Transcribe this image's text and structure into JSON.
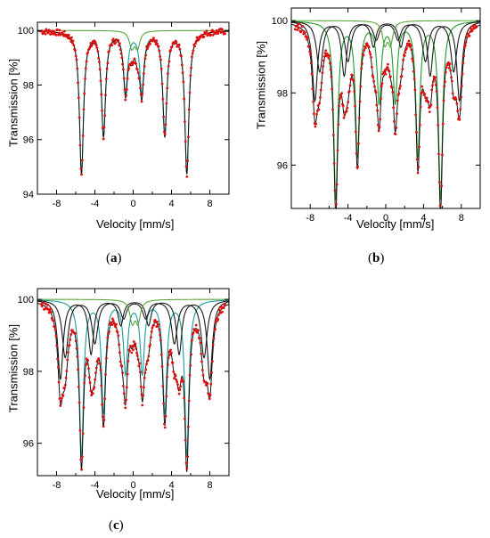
{
  "colors": {
    "data": "#dd1111",
    "envelope": "#111111",
    "subspectrum_black": "#1a1a1a",
    "sextet_teal": "#1a9a9a",
    "sextet_green": "#1e9a2a",
    "doublet_green": "#5aa63a"
  },
  "labels": {
    "a": "a",
    "b": "b",
    "c": "c"
  },
  "chart_data": [
    {
      "id": "a",
      "type": "line",
      "xlabel": "Velocity [mm/s]",
      "ylabel": "Transmission [%]",
      "xlim": [
        -10,
        10
      ],
      "ylim": [
        94,
        100.3
      ],
      "xticks": [
        -8,
        -4,
        0,
        4,
        8
      ],
      "yticks": [
        94,
        96,
        98,
        100
      ],
      "series": [
        {
          "color": "sextet_teal",
          "lines": [
            {
              "x": -5.4,
              "depth": 5.2,
              "width": 0.26
            },
            {
              "x": -3.1,
              "depth": 3.8,
              "width": 0.26
            },
            {
              "x": -0.8,
              "depth": 2.2,
              "width": 0.26
            },
            {
              "x": 0.9,
              "depth": 2.2,
              "width": 0.26
            },
            {
              "x": 3.3,
              "depth": 3.8,
              "width": 0.26
            },
            {
              "x": 5.6,
              "depth": 5.2,
              "width": 0.26
            }
          ]
        },
        {
          "color": "doublet_green",
          "lines": [
            {
              "x": -0.15,
              "depth": 0.6,
              "width": 0.3
            },
            {
              "x": 0.45,
              "depth": 0.6,
              "width": 0.3
            }
          ]
        }
      ]
    },
    {
      "id": "b",
      "type": "line",
      "xlabel": "Velocity [mm/s]",
      "ylabel": "Transmission [%]",
      "xlim": [
        -10,
        10
      ],
      "ylim": [
        94.8,
        100.35
      ],
      "xticks": [
        -8,
        -4,
        0,
        4,
        8
      ],
      "yticks": [
        96,
        98,
        100
      ],
      "series": [
        {
          "color": "sextet_green",
          "lines": [
            {
              "x": -5.3,
              "depth": 4.9,
              "width": 0.26
            },
            {
              "x": -3.0,
              "depth": 3.7,
              "width": 0.26
            },
            {
              "x": -0.7,
              "depth": 2.2,
              "width": 0.26
            },
            {
              "x": 1.0,
              "depth": 2.2,
              "width": 0.26
            },
            {
              "x": 3.4,
              "depth": 3.7,
              "width": 0.26
            },
            {
              "x": 5.8,
              "depth": 4.9,
              "width": 0.26
            }
          ]
        },
        {
          "color": "subspectrum_black",
          "lines": [
            {
              "x": -7.5,
              "depth": 2.2,
              "width": 0.33
            },
            {
              "x": -4.4,
              "depth": 1.5,
              "width": 0.33
            },
            {
              "x": -1.3,
              "depth": 0.7,
              "width": 0.33
            },
            {
              "x": 1.6,
              "depth": 0.7,
              "width": 0.33
            },
            {
              "x": 4.7,
              "depth": 1.5,
              "width": 0.33
            },
            {
              "x": 7.8,
              "depth": 2.2,
              "width": 0.33
            }
          ]
        },
        {
          "color": "subspectrum_black",
          "lines": [
            {
              "x": -7.0,
              "depth": 1.4,
              "width": 0.38
            },
            {
              "x": -4.0,
              "depth": 1.1,
              "width": 0.38
            },
            {
              "x": -1.0,
              "depth": 0.5,
              "width": 0.38
            },
            {
              "x": 1.3,
              "depth": 0.5,
              "width": 0.38
            },
            {
              "x": 4.2,
              "depth": 1.1,
              "width": 0.38
            },
            {
              "x": 7.2,
              "depth": 1.4,
              "width": 0.38
            }
          ]
        },
        {
          "color": "doublet_green",
          "lines": [
            {
              "x": -0.1,
              "depth": 0.6,
              "width": 0.3
            },
            {
              "x": 0.5,
              "depth": 0.6,
              "width": 0.3
            }
          ]
        }
      ]
    },
    {
      "id": "c",
      "type": "line",
      "xlabel": "Velocity [mm/s]",
      "ylabel": "Transmission [%]",
      "xlim": [
        -10,
        10
      ],
      "ylim": [
        95.1,
        100.3
      ],
      "xticks": [
        -8,
        -4,
        0,
        4,
        8
      ],
      "yticks": [
        96,
        98,
        100
      ],
      "series": [
        {
          "color": "sextet_teal",
          "lines": [
            {
              "x": -5.4,
              "depth": 4.3,
              "width": 0.26
            },
            {
              "x": -3.1,
              "depth": 3.1,
              "width": 0.26
            },
            {
              "x": -0.8,
              "depth": 2.0,
              "width": 0.26
            },
            {
              "x": 0.95,
              "depth": 2.0,
              "width": 0.26
            },
            {
              "x": 3.3,
              "depth": 3.1,
              "width": 0.26
            },
            {
              "x": 5.6,
              "depth": 4.3,
              "width": 0.26
            }
          ]
        },
        {
          "color": "subspectrum_black",
          "lines": [
            {
              "x": -7.6,
              "depth": 2.2,
              "width": 0.33
            },
            {
              "x": -4.4,
              "depth": 1.5,
              "width": 0.33
            },
            {
              "x": -1.3,
              "depth": 0.7,
              "width": 0.33
            },
            {
              "x": 1.6,
              "depth": 0.7,
              "width": 0.33
            },
            {
              "x": 4.8,
              "depth": 1.5,
              "width": 0.33
            },
            {
              "x": 8.0,
              "depth": 2.2,
              "width": 0.33
            }
          ]
        },
        {
          "color": "subspectrum_black",
          "lines": [
            {
              "x": -7.1,
              "depth": 1.6,
              "width": 0.38
            },
            {
              "x": -4.0,
              "depth": 1.2,
              "width": 0.38
            },
            {
              "x": -1.0,
              "depth": 0.5,
              "width": 0.38
            },
            {
              "x": 1.3,
              "depth": 0.5,
              "width": 0.38
            },
            {
              "x": 4.3,
              "depth": 1.2,
              "width": 0.38
            },
            {
              "x": 7.4,
              "depth": 1.6,
              "width": 0.38
            }
          ]
        },
        {
          "color": "doublet_green",
          "lines": [
            {
              "x": -0.1,
              "depth": 0.6,
              "width": 0.3
            },
            {
              "x": 0.5,
              "depth": 0.6,
              "width": 0.3
            }
          ]
        }
      ]
    }
  ]
}
